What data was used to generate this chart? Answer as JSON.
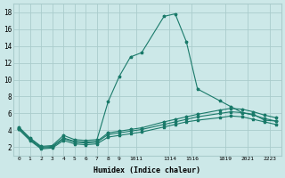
{
  "xlabel": "Humidex (Indice chaleur)",
  "background_color": "#cce8e8",
  "grid_color": "#aacccc",
  "line_color": "#1a7a6a",
  "xlim": [
    -0.5,
    23.5
  ],
  "ylim": [
    1.0,
    19.0
  ],
  "yticks": [
    2,
    4,
    6,
    8,
    10,
    12,
    14,
    16,
    18
  ],
  "xtick_positions": [
    0,
    1,
    2,
    3,
    4,
    5,
    6,
    7,
    8,
    9,
    10.5,
    13.5,
    15.5,
    18.5,
    20.5,
    22.5
  ],
  "xtick_labels": [
    "0",
    "1",
    "2",
    "3",
    "4",
    "5",
    "6",
    "7",
    "8",
    "9",
    "1011",
    "1314",
    "1516",
    "1819",
    "2021",
    "2223"
  ],
  "series": [
    {
      "x": [
        0,
        1,
        2,
        3,
        4,
        5,
        6,
        7,
        8,
        9,
        10,
        11,
        13,
        14,
        15,
        16,
        18,
        19,
        20,
        21,
        22,
        23
      ],
      "y": [
        4.4,
        3.1,
        2.1,
        2.2,
        3.4,
        2.9,
        2.8,
        2.9,
        7.4,
        10.4,
        12.7,
        13.2,
        17.5,
        17.8,
        14.5,
        8.9,
        7.5,
        6.8,
        6.1,
        5.9,
        5.2,
        5.1
      ]
    },
    {
      "x": [
        0,
        1,
        2,
        3,
        4,
        5,
        6,
        7,
        8,
        9,
        10,
        11,
        13,
        14,
        15,
        16,
        18,
        19,
        20,
        21,
        22,
        23
      ],
      "y": [
        4.3,
        3.0,
        2.0,
        2.1,
        3.1,
        2.7,
        2.6,
        2.7,
        3.7,
        3.9,
        4.1,
        4.3,
        5.0,
        5.3,
        5.6,
        5.9,
        6.4,
        6.6,
        6.5,
        6.2,
        5.8,
        5.5
      ]
    },
    {
      "x": [
        0,
        1,
        2,
        3,
        4,
        5,
        6,
        7,
        8,
        9,
        10,
        11,
        13,
        14,
        15,
        16,
        18,
        19,
        20,
        21,
        22,
        23
      ],
      "y": [
        4.2,
        2.9,
        1.9,
        2.0,
        3.0,
        2.6,
        2.5,
        2.6,
        3.5,
        3.7,
        3.9,
        4.1,
        4.7,
        5.0,
        5.3,
        5.6,
        6.0,
        6.2,
        6.1,
        5.8,
        5.4,
        5.1
      ]
    },
    {
      "x": [
        0,
        1,
        2,
        3,
        4,
        5,
        6,
        7,
        8,
        9,
        10,
        11,
        13,
        14,
        15,
        16,
        18,
        19,
        20,
        21,
        22,
        23
      ],
      "y": [
        4.1,
        2.8,
        1.8,
        1.9,
        2.8,
        2.4,
        2.3,
        2.4,
        3.2,
        3.4,
        3.6,
        3.8,
        4.4,
        4.7,
        5.0,
        5.2,
        5.5,
        5.7,
        5.6,
        5.3,
        5.0,
        4.7
      ]
    }
  ]
}
